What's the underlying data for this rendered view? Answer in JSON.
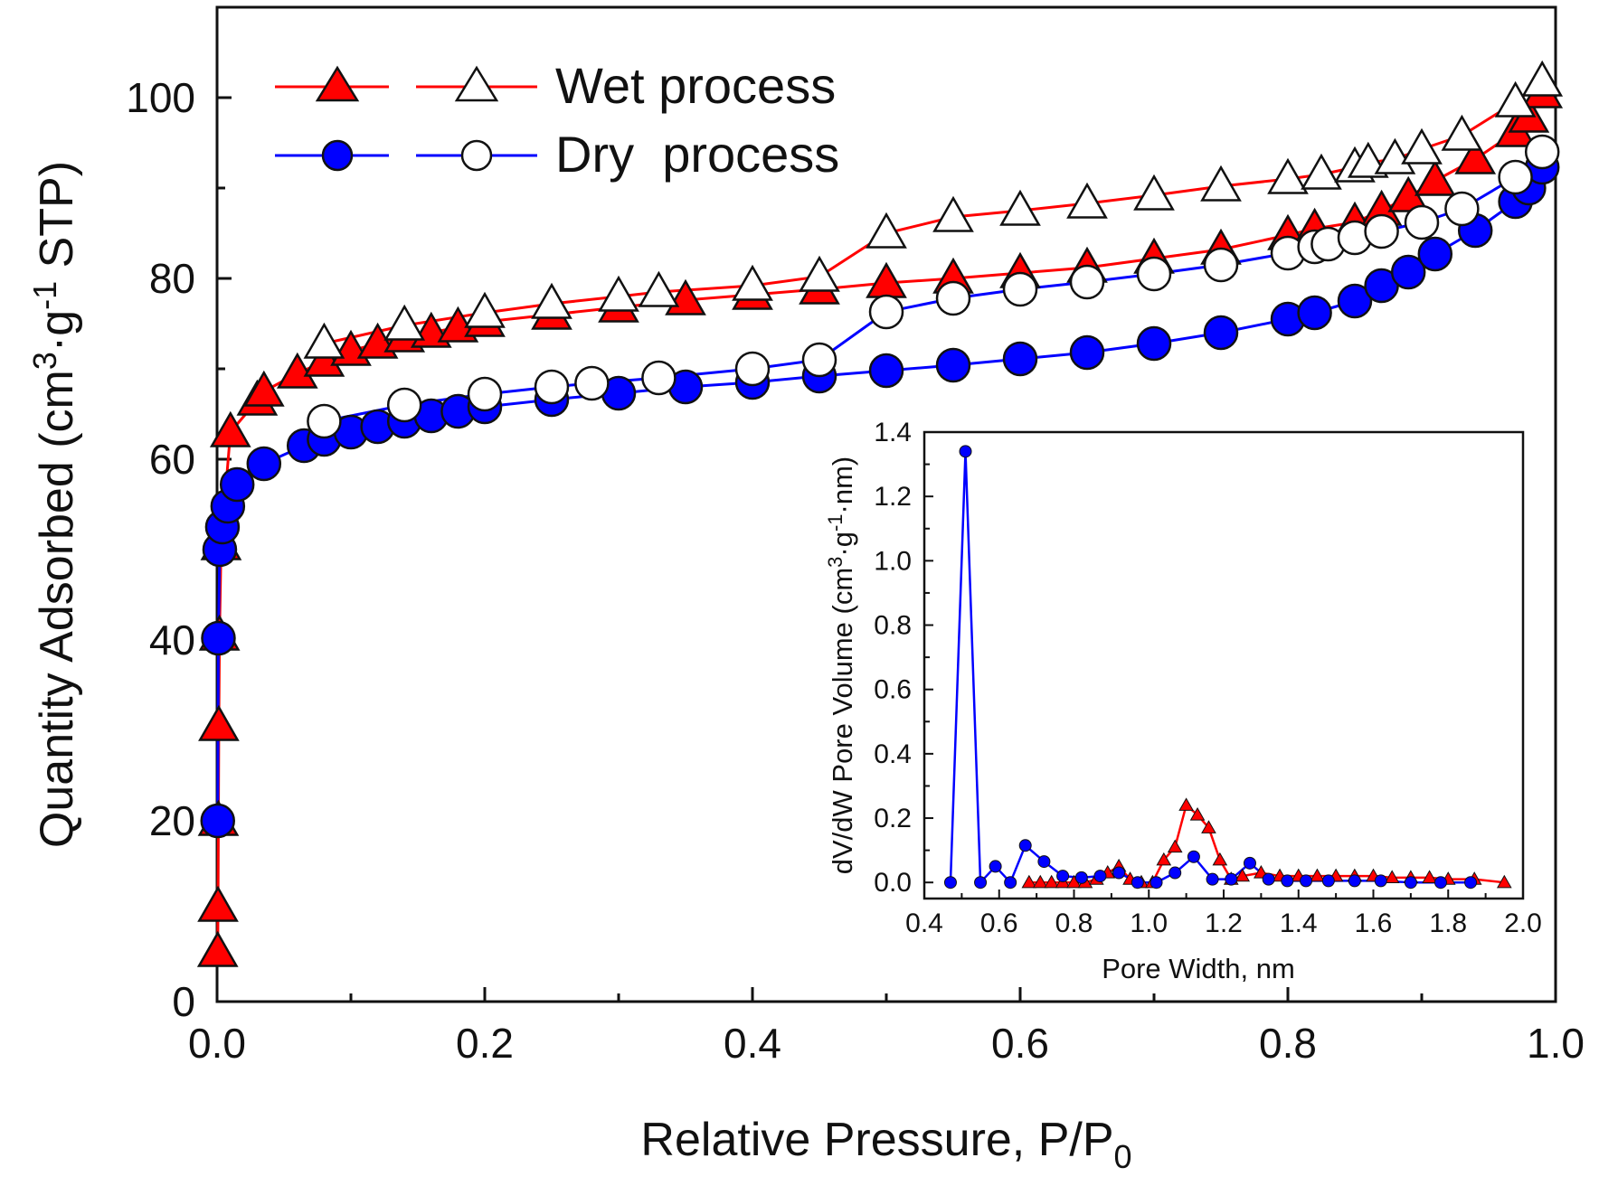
{
  "chart_data": [
    {
      "type": "line",
      "id": "isotherm",
      "xlabel": "Relative Pressure, P/P",
      "xlabel_sub": "0",
      "ylabel": "Quantity Adsorbed (cm",
      "ylabel_sup1": "3",
      "ylabel_mid": "·g",
      "ylabel_sup2": "-1",
      "ylabel_end": " STP)",
      "xlim": [
        0,
        1.0
      ],
      "ylim": [
        0,
        110
      ],
      "xticks": [
        "0.0",
        "0.2",
        "0.4",
        "0.6",
        "0.8",
        "1.0"
      ],
      "xtick_values": [
        0,
        0.2,
        0.4,
        0.6,
        0.8,
        1.0
      ],
      "yticks": [
        "0",
        "20",
        "40",
        "60",
        "80",
        "100"
      ],
      "ytick_values": [
        0,
        20,
        40,
        60,
        80,
        100
      ],
      "legend": [
        {
          "label": "Wet process",
          "color": "#ff0000",
          "marker": "triangle"
        },
        {
          "label": "Dry  process",
          "color": "#0000ff",
          "marker": "circle"
        }
      ],
      "series": [
        {
          "name": "Wet process adsorption",
          "color": "#ff0000",
          "marker": "triangle",
          "filled": true,
          "x": [
            0.0005,
            0.0007,
            0.001,
            0.0013,
            0.0018,
            0.003,
            0.01,
            0.03,
            0.035,
            0.06,
            0.08,
            0.1,
            0.12,
            0.14,
            0.16,
            0.18,
            0.2,
            0.25,
            0.3,
            0.35,
            0.4,
            0.45,
            0.5,
            0.55,
            0.6,
            0.65,
            0.7,
            0.75,
            0.8,
            0.82,
            0.85,
            0.87,
            0.89,
            0.91,
            0.94,
            0.97,
            0.98,
            0.99
          ],
          "y": [
            5.5,
            10.5,
            20,
            30.5,
            40.5,
            50.5,
            63,
            66.5,
            67.5,
            69.5,
            70.8,
            72,
            72.8,
            73.5,
            74,
            74.6,
            75.2,
            76,
            76.8,
            77.6,
            78.2,
            78.8,
            79.5,
            80,
            80.6,
            81.2,
            82.2,
            83.2,
            84.8,
            85.5,
            86.2,
            87.5,
            89,
            90.8,
            93.2,
            96.2,
            97.8,
            100.5
          ]
        },
        {
          "name": "Wet process desorption",
          "color": "#ff0000",
          "marker": "triangle",
          "filled": false,
          "x": [
            0.08,
            0.14,
            0.2,
            0.25,
            0.3,
            0.33,
            0.4,
            0.45,
            0.5,
            0.55,
            0.6,
            0.65,
            0.7,
            0.75,
            0.8,
            0.825,
            0.85,
            0.86,
            0.88,
            0.9,
            0.93,
            0.97,
            0.99
          ],
          "y": [
            72.8,
            74.8,
            76.2,
            77.2,
            78,
            78.5,
            79.2,
            80.2,
            85,
            86.8,
            87.5,
            88.3,
            89.2,
            90.2,
            91,
            91.5,
            92.3,
            92.8,
            93.2,
            94.3,
            95.8,
            99.5,
            101.8
          ]
        },
        {
          "name": "Dry process adsorption",
          "color": "#0000ff",
          "marker": "circle",
          "filled": true,
          "x": [
            0.0005,
            0.001,
            0.002,
            0.004,
            0.008,
            0.015,
            0.035,
            0.065,
            0.08,
            0.1,
            0.12,
            0.14,
            0.16,
            0.18,
            0.2,
            0.25,
            0.3,
            0.35,
            0.4,
            0.45,
            0.5,
            0.55,
            0.6,
            0.65,
            0.7,
            0.75,
            0.8,
            0.82,
            0.85,
            0.87,
            0.89,
            0.91,
            0.94,
            0.97,
            0.98,
            0.99
          ],
          "y": [
            20,
            40.2,
            50,
            52.5,
            54.8,
            57.2,
            59.5,
            61.5,
            62.2,
            63,
            63.6,
            64.2,
            64.8,
            65.3,
            65.8,
            66.6,
            67.3,
            68,
            68.5,
            69.2,
            69.8,
            70.4,
            71.1,
            71.8,
            72.8,
            74,
            75.5,
            76.2,
            77.5,
            79.2,
            80.7,
            82.7,
            85.3,
            88.5,
            90,
            92.3
          ]
        },
        {
          "name": "Dry process desorption",
          "color": "#0000ff",
          "marker": "circle",
          "filled": false,
          "x": [
            0.08,
            0.14,
            0.2,
            0.25,
            0.28,
            0.33,
            0.4,
            0.45,
            0.5,
            0.55,
            0.6,
            0.65,
            0.7,
            0.75,
            0.8,
            0.82,
            0.83,
            0.85,
            0.87,
            0.9,
            0.93,
            0.97,
            0.99
          ],
          "y": [
            64.2,
            66,
            67.2,
            68,
            68.4,
            69,
            70,
            71,
            76.3,
            77.8,
            78.8,
            79.6,
            80.5,
            81.5,
            82.8,
            83.5,
            83.8,
            84.5,
            85.2,
            86.2,
            87.7,
            91.2,
            94
          ]
        }
      ]
    },
    {
      "type": "line",
      "id": "inset-psd",
      "xlabel": "Pore Width, nm",
      "ylabel": "dV/dW Pore Volume (cm",
      "ylabel_sup1": "3",
      "ylabel_mid": "·g",
      "ylabel_sup2": "-1",
      "ylabel_end": "·nm)",
      "xlim": [
        0.4,
        2.0
      ],
      "ylim": [
        -0.05,
        1.4
      ],
      "xticks": [
        "0.4",
        "0.6",
        "0.8",
        "1.0",
        "1.2",
        "1.4",
        "1.6",
        "1.8",
        "2.0"
      ],
      "xtick_values": [
        0.4,
        0.6,
        0.8,
        1.0,
        1.2,
        1.4,
        1.6,
        1.8,
        2.0
      ],
      "yticks": [
        "0.0",
        "0.2",
        "0.4",
        "0.6",
        "0.8",
        "1.0",
        "1.2",
        "1.4"
      ],
      "ytick_values": [
        0,
        0.2,
        0.4,
        0.6,
        0.8,
        1.0,
        1.2,
        1.4
      ],
      "series": [
        {
          "name": "Wet process",
          "color": "#ff0000",
          "marker": "triangle",
          "filled": true,
          "x": [
            0.68,
            0.71,
            0.74,
            0.77,
            0.8,
            0.83,
            0.86,
            0.89,
            0.92,
            0.95,
            0.98,
            1.01,
            1.04,
            1.07,
            1.1,
            1.13,
            1.16,
            1.19,
            1.22,
            1.25,
            1.3,
            1.35,
            1.4,
            1.45,
            1.5,
            1.55,
            1.6,
            1.65,
            1.7,
            1.75,
            1.8,
            1.87,
            1.95
          ],
          "y": [
            0,
            0,
            0,
            0,
            0,
            0,
            0.01,
            0.03,
            0.05,
            0.01,
            0,
            0,
            0.07,
            0.11,
            0.24,
            0.21,
            0.17,
            0.07,
            0.01,
            0.02,
            0.03,
            0.02,
            0.02,
            0.02,
            0.02,
            0.02,
            0.02,
            0.015,
            0.015,
            0.015,
            0.01,
            0.01,
            0
          ]
        },
        {
          "name": "Dry process",
          "color": "#0000ff",
          "marker": "circle",
          "filled": true,
          "x": [
            0.47,
            0.51,
            0.55,
            0.59,
            0.63,
            0.67,
            0.72,
            0.77,
            0.82,
            0.87,
            0.92,
            0.97,
            1.02,
            1.07,
            1.12,
            1.17,
            1.22,
            1.27,
            1.32,
            1.37,
            1.42,
            1.48,
            1.55,
            1.62,
            1.7,
            1.78,
            1.86
          ],
          "y": [
            0,
            1.34,
            0,
            0.05,
            0,
            0.115,
            0.065,
            0.02,
            0.015,
            0.02,
            0.03,
            0,
            0,
            0.03,
            0.08,
            0.01,
            0.01,
            0.06,
            0.01,
            0.005,
            0.005,
            0.005,
            0.005,
            0.005,
            0,
            0,
            0
          ]
        }
      ]
    }
  ]
}
